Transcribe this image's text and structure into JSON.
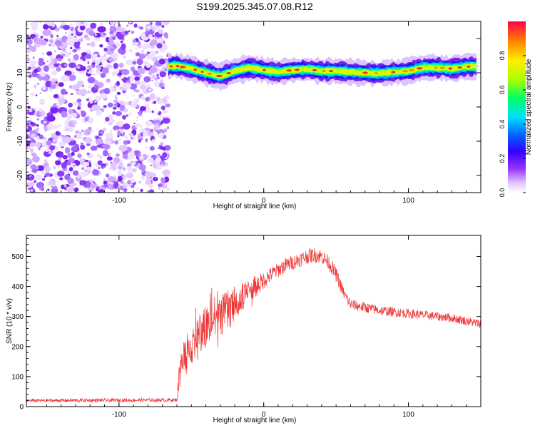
{
  "title": "S199.2025.345.07.08.R12",
  "chart_data": [
    {
      "type": "heatmap",
      "name": "spectrogram",
      "xlabel": "Height of straight line (km)",
      "ylabel": "Frequency (Hz)",
      "xlim": [
        -164,
        150
      ],
      "ylim": [
        -25,
        25
      ],
      "xticks": [
        -100,
        0,
        100
      ],
      "yticks": [
        -20,
        -10,
        0,
        10,
        20
      ],
      "colorbar": {
        "label": "Normalized spectral amplitude",
        "range": [
          0,
          1
        ],
        "ticks": [
          0.0,
          0.2,
          0.4,
          0.6,
          0.8
        ],
        "tick_labels": [
          "0.0",
          "0.2",
          "0.4",
          "0.6",
          "0.8"
        ]
      },
      "noise_region_x": [
        -164,
        -66
      ],
      "signal_ridge": {
        "x": [
          -66,
          -60,
          -50,
          -40,
          -30,
          -20,
          -10,
          0,
          10,
          20,
          30,
          40,
          50,
          60,
          70,
          80,
          90,
          100,
          110,
          120,
          130,
          140,
          148
        ],
        "frequency": [
          11.8,
          12.0,
          11.2,
          10.0,
          9.0,
          10.5,
          11.5,
          10.8,
          10.2,
          10.8,
          11.0,
          10.5,
          10.5,
          10.2,
          10.0,
          9.8,
          10.2,
          10.5,
          11.5,
          11.5,
          11.2,
          11.8,
          11.8
        ]
      }
    },
    {
      "type": "line",
      "name": "snr",
      "xlabel": "Height of straight line (km)",
      "ylabel": "SNR (10 * v/v)",
      "xlim": [
        -164,
        150
      ],
      "ylim": [
        0,
        570
      ],
      "xticks": [
        -100,
        0,
        100
      ],
      "yticks": [
        0,
        100,
        200,
        300,
        400,
        500
      ],
      "color": "#ee3333",
      "envelope": {
        "x": [
          -164,
          -60,
          -58,
          -55,
          -50,
          -45,
          -40,
          -35,
          -30,
          -25,
          -20,
          -15,
          -10,
          -5,
          0,
          5,
          10,
          15,
          20,
          25,
          30,
          35,
          40,
          45,
          50,
          55,
          60,
          70,
          80,
          90,
          100,
          110,
          120,
          130,
          140,
          150
        ],
        "mean": [
          20,
          22,
          120,
          170,
          200,
          230,
          260,
          290,
          300,
          320,
          340,
          360,
          380,
          400,
          420,
          440,
          455,
          470,
          480,
          490,
          500,
          505,
          500,
          480,
          440,
          380,
          340,
          330,
          320,
          315,
          310,
          305,
          300,
          295,
          285,
          275
        ],
        "spread": [
          6,
          6,
          60,
          60,
          60,
          70,
          80,
          80,
          70,
          70,
          60,
          50,
          40,
          35,
          30,
          25,
          25,
          25,
          25,
          25,
          25,
          25,
          25,
          25,
          25,
          20,
          18,
          18,
          16,
          16,
          16,
          15,
          15,
          15,
          15,
          15
        ]
      }
    }
  ],
  "colors": {
    "snr_line": "#ee3333",
    "noise_purple": "#8a2be2",
    "axis": "#000000"
  }
}
